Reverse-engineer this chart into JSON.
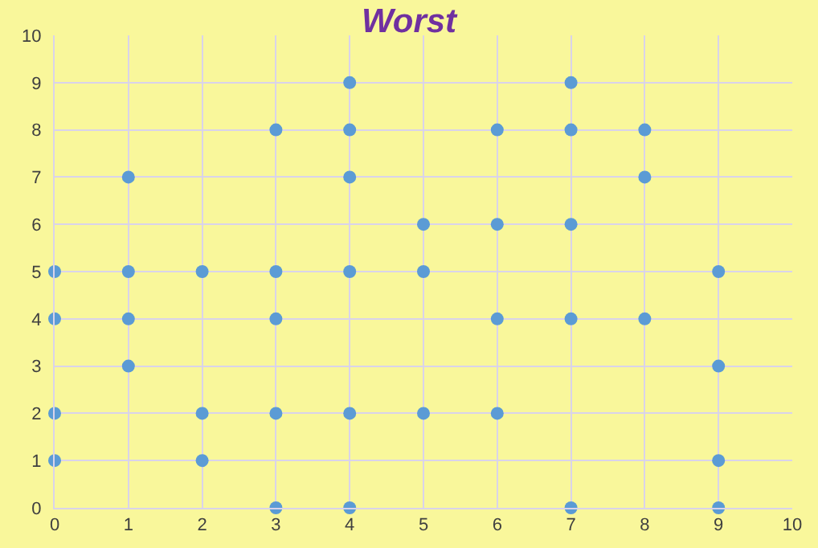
{
  "chart_data": {
    "type": "scatter",
    "title": "Worst",
    "x": [
      0,
      0,
      0,
      0,
      1,
      1,
      1,
      1,
      2,
      2,
      2,
      3,
      3,
      3,
      3,
      3,
      4,
      4,
      4,
      4,
      4,
      4,
      5,
      5,
      5,
      6,
      6,
      6,
      6,
      7,
      7,
      7,
      7,
      7,
      8,
      8,
      8,
      9,
      9,
      9,
      9
    ],
    "values": [
      5,
      4,
      2,
      1,
      7,
      5,
      4,
      3,
      5,
      2,
      1,
      8,
      5,
      4,
      2,
      0,
      9,
      8,
      7,
      5,
      2,
      0,
      6,
      5,
      2,
      8,
      6,
      4,
      2,
      9,
      8,
      6,
      4,
      0,
      8,
      7,
      4,
      5,
      3,
      1,
      0
    ],
    "color": "#5b9bd5",
    "marker": "circle",
    "xlim": [
      0,
      10
    ],
    "xticks": [
      0,
      1,
      2,
      3,
      4,
      5,
      6,
      7,
      8,
      9,
      10
    ],
    "ylim": [
      0,
      10
    ],
    "yticks": [
      0,
      1,
      2,
      3,
      4,
      5,
      6,
      7,
      8,
      9,
      10
    ],
    "grid": true
  }
}
